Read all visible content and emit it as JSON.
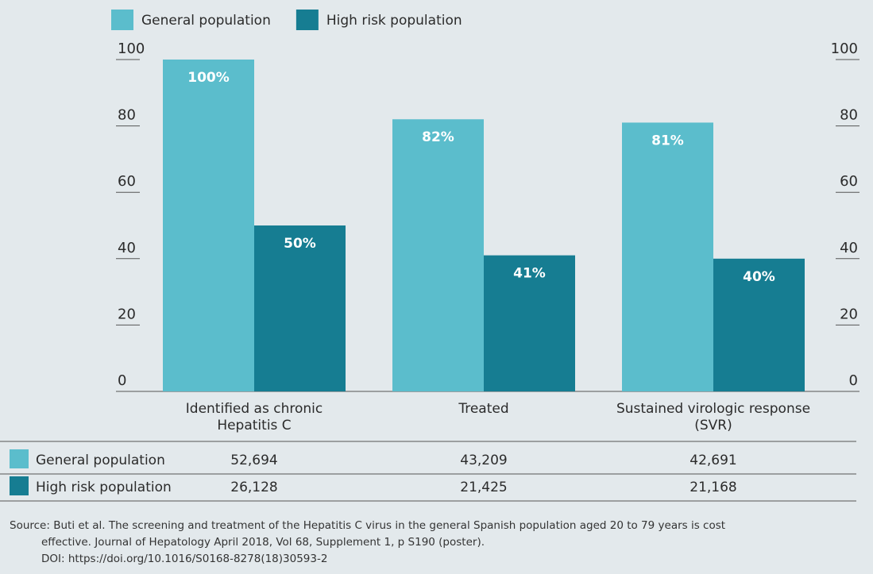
{
  "chart_data": {
    "type": "bar",
    "categories": [
      "Identified as chronic\nHepatitis C",
      "Treated",
      "Sustained virologic response\n(SVR)"
    ],
    "series": [
      {
        "name": "General population",
        "color": "#5bbdcc",
        "values": [
          100,
          82,
          81
        ],
        "value_labels": [
          "100%",
          "82%",
          "81%"
        ]
      },
      {
        "name": "High risk population",
        "color": "#167d92",
        "values": [
          50,
          41,
          40
        ],
        "value_labels": [
          "50%",
          "41%",
          "40%"
        ]
      }
    ],
    "ylim": [
      0,
      100
    ],
    "yticks": [
      0,
      20,
      40,
      60,
      80,
      100
    ],
    "y2lim": [
      0,
      100
    ],
    "y2ticks": [
      0,
      20,
      40,
      60,
      80,
      100
    ],
    "legend": "top"
  },
  "table": {
    "rows": [
      {
        "label": "General population",
        "values": [
          "52,694",
          "43,209",
          "42,691"
        ]
      },
      {
        "label": "High risk population",
        "values": [
          "26,128",
          "21,425",
          "21,168"
        ]
      }
    ]
  },
  "source": [
    "Source: Buti et al. The screening and treatment of the Hepatitis C virus in the general Spanish population aged 20 to 79 years is cost",
    "effective. Journal of Hepatology April 2018, Vol 68, Supplement 1, p S190 (poster).",
    "DOI: https://doi.org/10.1016/S0168-8278(18)30593-2"
  ]
}
